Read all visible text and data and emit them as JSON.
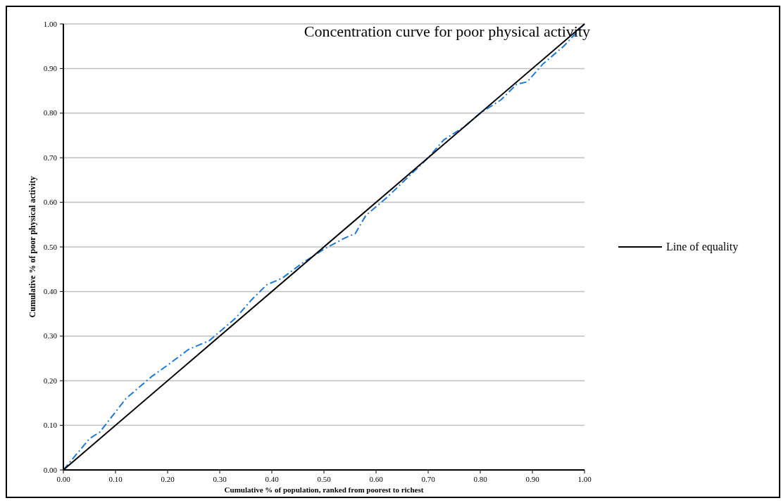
{
  "chart_data": {
    "type": "line",
    "title": "Concentration curve for poor physical activity",
    "xlabel": "Cumulative % of population, ranked from poorest to richest",
    "ylabel": "Cumulative % of poor physical activity",
    "xlim": [
      0,
      1
    ],
    "ylim": [
      0,
      1
    ],
    "xticks": [
      {
        "value": 0,
        "label": "0.00"
      },
      {
        "value": 0.1,
        "label": "0.10"
      },
      {
        "value": 0.2,
        "label": "0.20"
      },
      {
        "value": 0.3,
        "label": "0.30"
      },
      {
        "value": 0.4,
        "label": "0.40"
      },
      {
        "value": 0.5,
        "label": "0.50"
      },
      {
        "value": 0.6,
        "label": "0.60"
      },
      {
        "value": 0.7,
        "label": "0.70"
      },
      {
        "value": 0.8,
        "label": "0.80"
      },
      {
        "value": 0.9,
        "label": "0.90"
      },
      {
        "value": 1,
        "label": "1.00"
      }
    ],
    "yticks": [
      {
        "value": 0,
        "label": "0.00"
      },
      {
        "value": 0.1,
        "label": "0.10"
      },
      {
        "value": 0.2,
        "label": "0.20"
      },
      {
        "value": 0.3,
        "label": "0.30"
      },
      {
        "value": 0.4,
        "label": "0.40"
      },
      {
        "value": 0.5,
        "label": "0.50"
      },
      {
        "value": 0.6,
        "label": "0.60"
      },
      {
        "value": 0.7,
        "label": "0.70"
      },
      {
        "value": 0.8,
        "label": "0.80"
      },
      {
        "value": 0.9,
        "label": "0.90"
      },
      {
        "value": 1,
        "label": "1.00"
      }
    ],
    "grid": "y",
    "legend": "right",
    "marker": "none",
    "series": [
      {
        "color": "#1f78d1",
        "line_style": "dashed",
        "x": [
          0,
          0.05,
          0.07,
          0.1,
          0.12,
          0.15,
          0.17,
          0.2,
          0.24,
          0.28,
          0.3,
          0.33,
          0.36,
          0.39,
          0.42,
          0.46,
          0.5,
          0.54,
          0.56,
          0.58,
          0.62,
          0.66,
          0.7,
          0.73,
          0.77,
          0.8,
          0.84,
          0.87,
          0.89,
          0.92,
          0.96,
          1
        ],
        "values": [
          0,
          0.07,
          0.085,
          0.13,
          0.16,
          0.19,
          0.21,
          0.235,
          0.27,
          0.29,
          0.31,
          0.34,
          0.38,
          0.415,
          0.43,
          0.465,
          0.495,
          0.52,
          0.53,
          0.57,
          0.61,
          0.655,
          0.7,
          0.74,
          0.77,
          0.8,
          0.83,
          0.865,
          0.87,
          0.91,
          0.95,
          1
        ]
      },
      {
        "name": "Line of equality",
        "color": "#000000",
        "line_style": "solid",
        "x": [
          0,
          1
        ],
        "values": [
          0,
          1
        ]
      }
    ]
  }
}
